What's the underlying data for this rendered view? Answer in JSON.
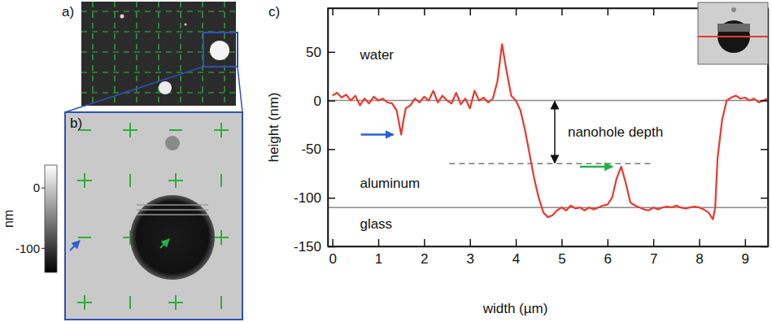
{
  "figure": {
    "panel_a": {
      "letter": "a)"
    },
    "panel_b": {
      "letter": "b)",
      "colorbar": {
        "label": "nm",
        "range": [
          38,
          -140
        ],
        "ticks": [
          0,
          -100
        ]
      }
    }
  },
  "chart_data": {
    "type": "line",
    "panel_label": "c)",
    "xlabel": "width (µm)",
    "ylabel": "height (nm)",
    "color": "#e83a2f",
    "x": [
      0,
      0.1,
      0.2,
      0.3,
      0.4,
      0.5,
      0.6,
      0.7,
      0.8,
      0.9,
      1.0,
      1.1,
      1.2,
      1.3,
      1.4,
      1.5,
      1.55,
      1.6,
      1.7,
      1.8,
      1.9,
      2.0,
      2.1,
      2.2,
      2.3,
      2.4,
      2.5,
      2.6,
      2.7,
      2.8,
      2.9,
      3.0,
      3.1,
      3.2,
      3.3,
      3.4,
      3.5,
      3.6,
      3.7,
      3.8,
      3.9,
      4.0,
      4.1,
      4.2,
      4.3,
      4.4,
      4.5,
      4.6,
      4.7,
      4.8,
      4.9,
      5.0,
      5.1,
      5.2,
      5.3,
      5.4,
      5.5,
      5.6,
      5.7,
      5.8,
      5.9,
      6.0,
      6.1,
      6.2,
      6.3,
      6.4,
      6.5,
      6.6,
      6.7,
      6.8,
      6.9,
      7.0,
      7.1,
      7.2,
      7.3,
      7.4,
      7.5,
      7.6,
      7.7,
      7.8,
      7.9,
      8.0,
      8.1,
      8.2,
      8.3,
      8.35,
      8.4,
      8.5,
      8.6,
      8.7,
      8.8,
      8.9,
      9.0,
      9.1,
      9.2,
      9.3,
      9.4,
      9.5
    ],
    "values": [
      5,
      8,
      3,
      6,
      0,
      5,
      -5,
      2,
      -3,
      4,
      0,
      2,
      -2,
      -3,
      -10,
      -35,
      -20,
      -8,
      -5,
      2,
      -2,
      4,
      0,
      10,
      -2,
      5,
      0,
      -3,
      8,
      -4,
      2,
      -8,
      10,
      0,
      3,
      -2,
      2,
      20,
      58,
      30,
      5,
      0,
      -10,
      -30,
      -55,
      -80,
      -100,
      -115,
      -120,
      -118,
      -113,
      -110,
      -113,
      -108,
      -111,
      -110,
      -113,
      -110,
      -112,
      -110,
      -108,
      -107,
      -100,
      -80,
      -68,
      -85,
      -105,
      -108,
      -110,
      -112,
      -113,
      -110,
      -112,
      -110,
      -109,
      -110,
      -108,
      -110,
      -111,
      -110,
      -109,
      -110,
      -112,
      -115,
      -122,
      -110,
      -60,
      -20,
      0,
      3,
      5,
      2,
      3,
      0,
      2,
      -2,
      0,
      2
    ],
    "xlim": [
      -0.1,
      9.5
    ],
    "xticks": [
      0,
      1,
      2,
      3,
      4,
      5,
      6,
      7,
      8,
      9
    ],
    "ylim": [
      -150,
      95
    ],
    "yticks": [
      50,
      0,
      -50,
      -100,
      -150
    ],
    "grid": false,
    "reference_lines": [
      {
        "y": 0
      },
      {
        "y": -110
      },
      {
        "y": -65,
        "x": [
          2.55,
          7.0
        ],
        "line_style": "dashed"
      }
    ],
    "annotations": [
      {
        "text": "water",
        "x": 0.6,
        "y": 42
      },
      {
        "text": "aluminum",
        "x": 0.6,
        "y": -90
      },
      {
        "text": "glass",
        "x": 0.6,
        "y": -132
      }
    ],
    "arrows": [
      {
        "color": "#2b5fd9",
        "x": 1.4,
        "y": -35
      },
      {
        "color": "#22b04a",
        "x": 6.18,
        "y": -68
      }
    ],
    "depth_marker": {
      "text": "nanohole depth",
      "x": 4.85,
      "y": [
        0,
        -65
      ]
    }
  }
}
